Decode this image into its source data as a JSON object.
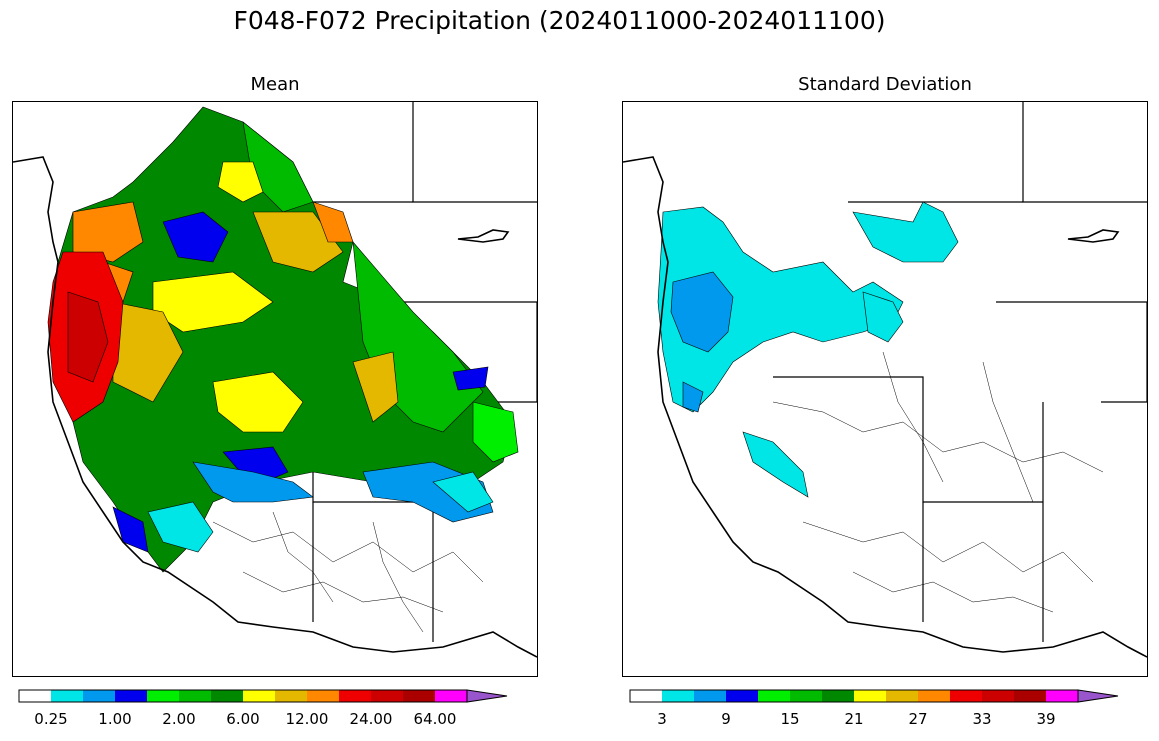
{
  "figure": {
    "title": "F048-F072 Precipitation (2024011000-2024011100)"
  },
  "panels": [
    {
      "title": "Mean",
      "colorbar": {
        "colors": [
          "#ffffff",
          "#00e5e5",
          "#0099ee",
          "#0000ee",
          "#00ee00",
          "#00bb00",
          "#008800",
          "#ffff00",
          "#e5b800",
          "#ff8800",
          "#ee0000",
          "#cc0000",
          "#aa0000",
          "#ff00ff",
          "#9955cc"
        ],
        "tick_labels": [
          "0.25",
          "1.00",
          "2.00",
          "6.00",
          "12.00",
          "24.00",
          "64.00"
        ],
        "extend": "max"
      }
    },
    {
      "title": "Standard Deviation",
      "colorbar": {
        "colors": [
          "#ffffff",
          "#00e5e5",
          "#0099ee",
          "#0000ee",
          "#00ee00",
          "#00bb00",
          "#008800",
          "#ffff00",
          "#e5b800",
          "#ff8800",
          "#ee0000",
          "#cc0000",
          "#aa0000",
          "#ff00ff",
          "#9955cc"
        ],
        "tick_labels": [
          "3",
          "9",
          "15",
          "21",
          "27",
          "33",
          "39"
        ],
        "extend": "max"
      }
    }
  ]
}
